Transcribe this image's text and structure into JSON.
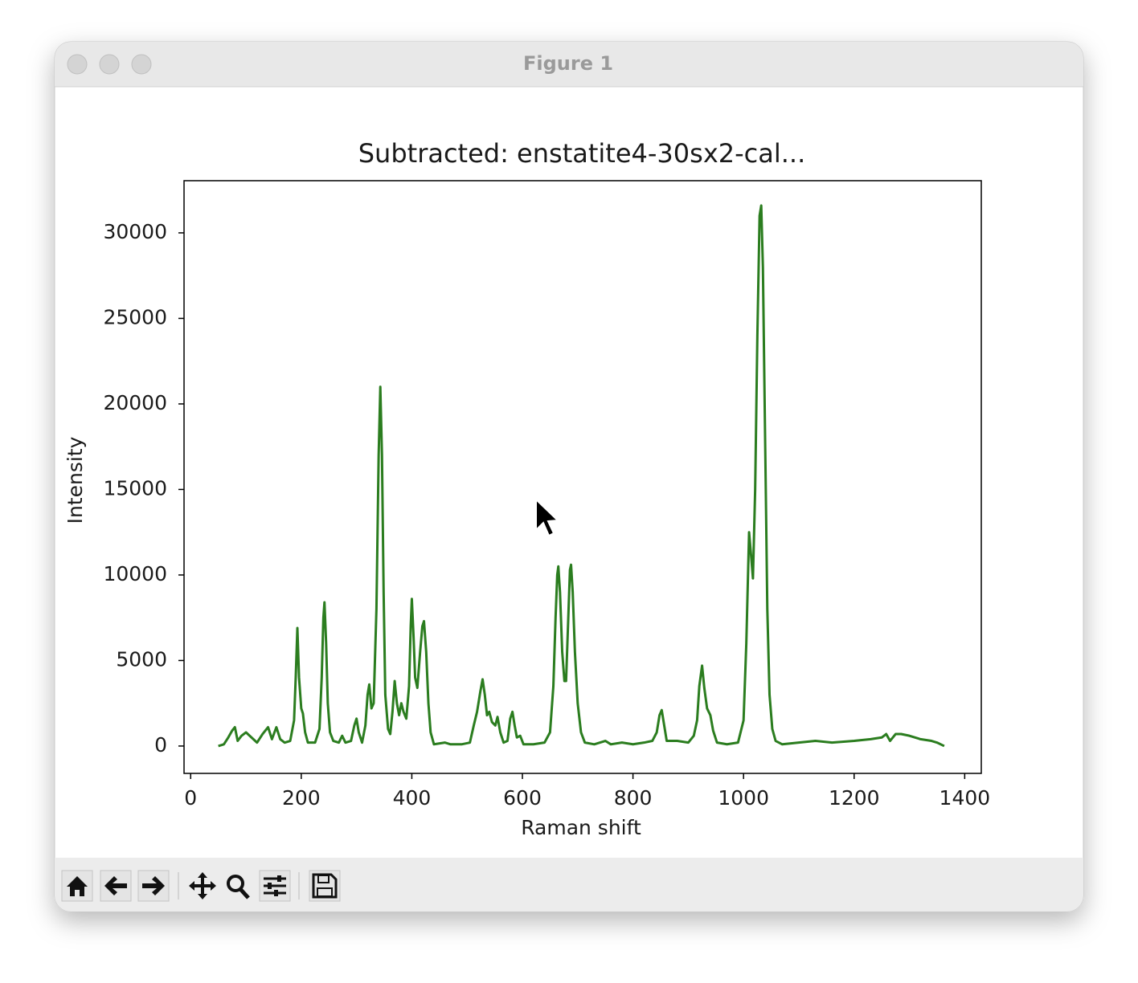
{
  "window_title": "Figure 1",
  "chart_data": {
    "type": "line",
    "title": "Subtracted: enstatite4-30sx2-cal...",
    "xlabel": "Raman shift",
    "ylabel": "Intensity",
    "color": "#2b7d1f",
    "x": [
      50,
      60,
      68,
      75,
      80,
      85,
      92,
      100,
      110,
      120,
      130,
      140,
      147,
      155,
      162,
      170,
      180,
      187,
      190,
      193,
      196,
      200,
      203,
      207,
      212,
      225,
      233,
      237,
      240,
      242,
      245,
      248,
      252,
      258,
      268,
      274,
      280,
      290,
      296,
      300,
      304,
      310,
      316,
      320,
      323,
      327,
      331,
      336,
      340,
      343,
      346,
      349,
      352,
      357,
      361,
      365,
      369,
      373,
      377,
      381,
      385,
      390,
      395,
      398,
      400,
      403,
      406,
      410,
      415,
      419,
      422,
      426,
      430,
      434,
      440,
      460,
      470,
      490,
      505,
      512,
      518,
      524,
      528,
      532,
      536,
      540,
      545,
      551,
      555,
      560,
      566,
      573,
      578,
      582,
      586,
      590,
      596,
      602,
      620,
      640,
      650,
      656,
      660,
      663,
      665,
      668,
      672,
      676,
      679,
      683,
      686,
      688,
      691,
      695,
      700,
      706,
      713,
      730,
      750,
      760,
      780,
      800,
      820,
      835,
      843,
      848,
      852,
      856,
      861,
      880,
      900,
      910,
      916,
      920,
      925,
      929,
      934,
      940,
      945,
      952,
      970,
      990,
      1000,
      1005,
      1010,
      1014,
      1017,
      1021,
      1025,
      1029,
      1032,
      1035,
      1039,
      1043,
      1047,
      1052,
      1058,
      1070,
      1100,
      1130,
      1160,
      1200,
      1230,
      1250,
      1258,
      1265,
      1275,
      1285,
      1300,
      1320,
      1340,
      1350,
      1363
    ],
    "values": [
      0,
      100,
      500,
      900,
      1100,
      300,
      600,
      800,
      500,
      200,
      700,
      1100,
      400,
      1100,
      400,
      200,
      300,
      1500,
      4000,
      6900,
      4000,
      2200,
      1900,
      800,
      200,
      200,
      1000,
      4000,
      7500,
      8400,
      6000,
      2500,
      800,
      300,
      200,
      600,
      200,
      300,
      1200,
      1600,
      800,
      200,
      1200,
      3000,
      3600,
      2200,
      2500,
      8000,
      17000,
      21000,
      17000,
      9000,
      3000,
      1000,
      700,
      2000,
      3800,
      2500,
      1800,
      2500,
      2000,
      1600,
      3500,
      7000,
      8600,
      6500,
      4000,
      3400,
      5500,
      7000,
      7300,
      5500,
      2500,
      800,
      100,
      200,
      100,
      100,
      200,
      1200,
      2000,
      3200,
      3900,
      3000,
      1800,
      2000,
      1400,
      1200,
      1700,
      800,
      200,
      300,
      1600,
      2000,
      1200,
      500,
      600,
      100,
      100,
      200,
      800,
      3500,
      7500,
      10000,
      10500,
      9000,
      5500,
      3800,
      3800,
      7500,
      10300,
      10600,
      9000,
      5500,
      2500,
      800,
      200,
      100,
      300,
      100,
      200,
      100,
      200,
      300,
      800,
      1800,
      2100,
      1300,
      300,
      300,
      200,
      600,
      1500,
      3500,
      4700,
      3400,
      2200,
      1800,
      900,
      200,
      100,
      200,
      1500,
      6000,
      12500,
      11000,
      9800,
      15000,
      24000,
      31000,
      31600,
      28000,
      18000,
      8000,
      3000,
      1000,
      300,
      100,
      200,
      300,
      200,
      300,
      400,
      500,
      700,
      300,
      700,
      700,
      600,
      400,
      300,
      200,
      0
    ],
    "xlim": [
      -12,
      1430
    ],
    "ylim": [
      -1600,
      33050
    ],
    "xticks": [
      0,
      200,
      400,
      600,
      800,
      1000,
      1200,
      1400
    ],
    "yticks": [
      0,
      5000,
      10000,
      15000,
      20000,
      25000,
      30000
    ]
  }
}
